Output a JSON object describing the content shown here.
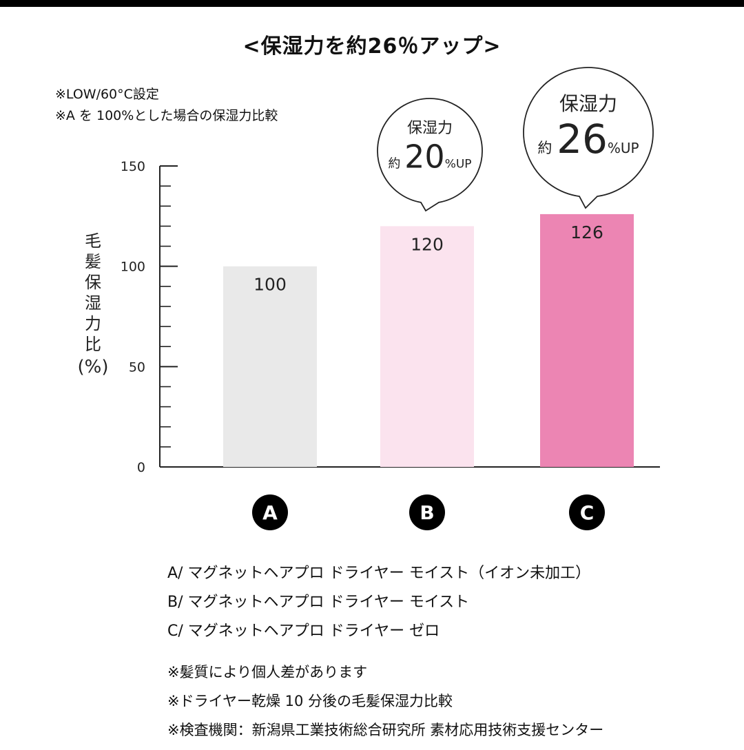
{
  "title": "<保湿力を約26％アップ>",
  "notes_top": [
    "※LOW/60°C設定",
    "※A を 100%とした場合の保湿力比較"
  ],
  "chart_data": {
    "type": "bar",
    "categories": [
      "A",
      "B",
      "C"
    ],
    "values": [
      100,
      120,
      126
    ],
    "data_labels": [
      "100",
      "120",
      "126"
    ],
    "ylabel": "毛髪保湿力比",
    "ylabel_unit": "(%)",
    "ylim": [
      0,
      150
    ],
    "yticks": [
      0,
      50,
      100,
      150
    ],
    "minor_tick_step": 10,
    "grid": false,
    "colors": [
      "#e9e9e9",
      "#fbe3ee",
      "#ec85b3"
    ],
    "callouts": [
      {
        "category": "B",
        "head": "保湿力",
        "prefix": "約",
        "number": "20",
        "suffix": "%UP"
      },
      {
        "category": "C",
        "head": "保湿力",
        "prefix": "約",
        "number": "26",
        "suffix": "%UP"
      }
    ]
  },
  "legend": [
    "A/ マグネットヘアプロ ドライヤー モイスト（イオン未加工）",
    "B/ マグネットヘアプロ ドライヤー モイスト",
    "C/ マグネットヘアプロ ドライヤー ゼロ"
  ],
  "footnotes": [
    "※髪質により個人差があります",
    "※ドライヤー乾燥 10 分後の毛髪保湿力比較",
    "※検査機関：新潟県工業技術総合研究所 素材応用技術支援センター"
  ]
}
